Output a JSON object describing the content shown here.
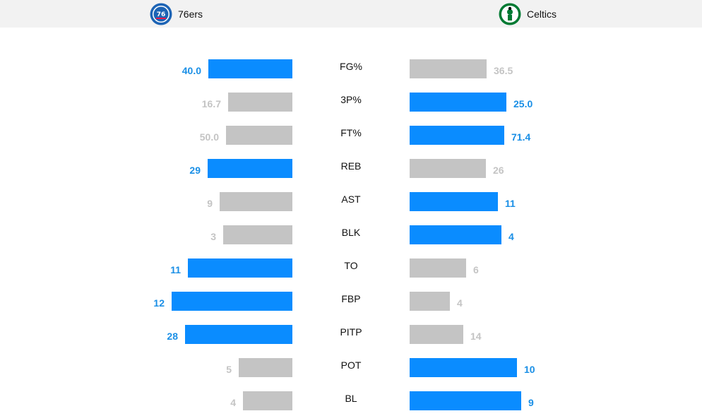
{
  "teams": {
    "home": {
      "name": "76ers",
      "logo_icon": "76ers-logo-icon"
    },
    "away": {
      "name": "Celtics",
      "logo_icon": "celtics-logo-icon"
    }
  },
  "colors": {
    "leader": "#0a8cff",
    "trailer": "#c4c4c4",
    "leader_text": "#1a8fe6"
  },
  "stats": [
    {
      "label": "FG%",
      "home": "40.0",
      "away": "36.5",
      "home_value": 40.0,
      "away_value": 36.5,
      "leader": "home"
    },
    {
      "label": "3P%",
      "home": "16.7",
      "away": "25.0",
      "home_value": 16.7,
      "away_value": 25.0,
      "leader": "away"
    },
    {
      "label": "FT%",
      "home": "50.0",
      "away": "71.4",
      "home_value": 50.0,
      "away_value": 71.4,
      "leader": "away"
    },
    {
      "label": "REB",
      "home": "29",
      "away": "26",
      "home_value": 29,
      "away_value": 26,
      "leader": "home"
    },
    {
      "label": "AST",
      "home": "9",
      "away": "11",
      "home_value": 9,
      "away_value": 11,
      "leader": "away"
    },
    {
      "label": "BLK",
      "home": "3",
      "away": "4",
      "home_value": 3,
      "away_value": 4,
      "leader": "away"
    },
    {
      "label": "TO",
      "home": "11",
      "away": "6",
      "home_value": 11,
      "away_value": 6,
      "leader": "home"
    },
    {
      "label": "FBP",
      "home": "12",
      "away": "4",
      "home_value": 12,
      "away_value": 4,
      "leader": "home"
    },
    {
      "label": "PITP",
      "home": "28",
      "away": "14",
      "home_value": 28,
      "away_value": 14,
      "leader": "home"
    },
    {
      "label": "POT",
      "home": "5",
      "away": "10",
      "home_value": 5,
      "away_value": 10,
      "leader": "away"
    },
    {
      "label": "BL",
      "home": "4",
      "away": "9",
      "home_value": 4,
      "away_value": 9,
      "leader": "away"
    }
  ]
}
